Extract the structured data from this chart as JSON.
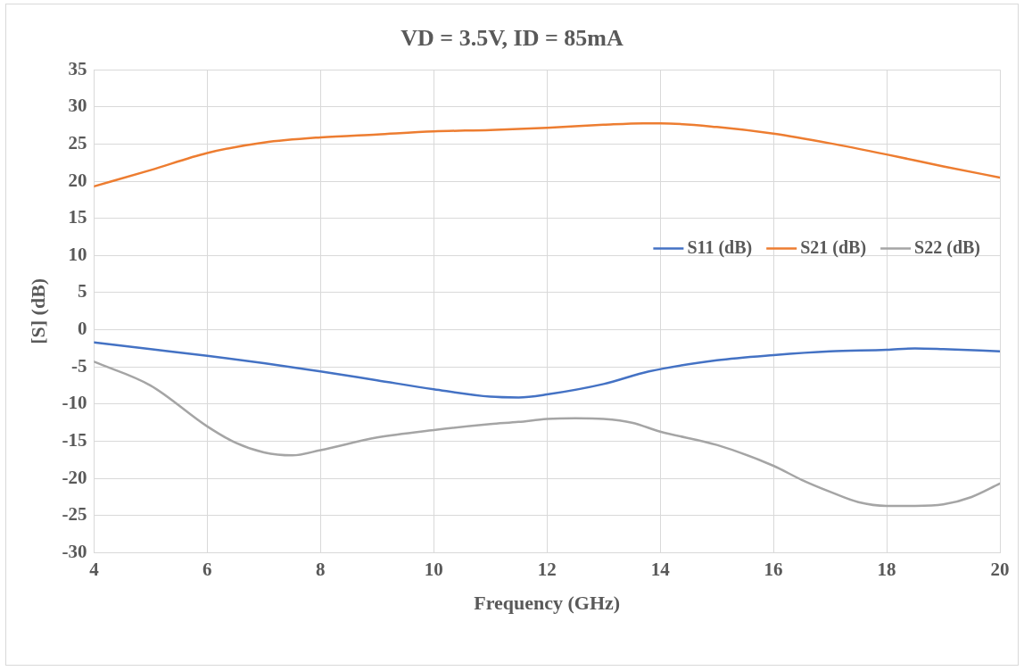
{
  "chart_data": {
    "type": "line",
    "title": "VD = 3.5V, ID = 85mA",
    "xlabel": "Frequency (GHz)",
    "ylabel": "[S] (dB)",
    "xlim": [
      4,
      20
    ],
    "xticks": [
      4,
      6,
      8,
      10,
      12,
      14,
      16,
      18,
      20
    ],
    "ylim": [
      -30,
      35
    ],
    "yticks": [
      -30,
      -25,
      -20,
      -15,
      -10,
      -5,
      0,
      5,
      10,
      15,
      20,
      25,
      30,
      35
    ],
    "grid": true,
    "legend": "right",
    "marker": "none",
    "line_style": "solid",
    "series": [
      {
        "name": "S11 (dB)",
        "color": "#4472c4",
        "x": [
          4,
          5,
          6,
          7,
          8,
          9,
          10,
          11,
          11.5,
          12,
          13,
          13.8,
          15,
          16,
          17,
          18,
          18.5,
          19,
          20
        ],
        "values": [
          -1.7,
          -2.6,
          -3.5,
          -4.5,
          -5.6,
          -6.8,
          -8,
          -9,
          -9.1,
          -8.7,
          -7.3,
          -5.6,
          -4.1,
          -3.4,
          -2.9,
          -2.7,
          -2.5,
          -2.6,
          -2.9
        ]
      },
      {
        "name": "S21 (dB)",
        "color": "#ed7d31",
        "x": [
          4,
          5,
          6,
          7,
          8,
          9,
          10,
          11,
          12,
          13,
          13.7,
          14,
          15,
          16,
          17,
          18,
          19,
          20
        ],
        "values": [
          19.3,
          21.5,
          23.8,
          25.2,
          25.9,
          26.3,
          26.7,
          26.9,
          27.2,
          27.6,
          27.8,
          27.8,
          27.3,
          26.4,
          25.1,
          23.6,
          22,
          20.5
        ]
      },
      {
        "name": "S22 (dB)",
        "color": "#a5a5a5",
        "x": [
          4,
          5,
          6,
          6.5,
          7,
          7.5,
          8,
          9,
          10,
          11,
          11.5,
          12,
          12.5,
          13,
          13.5,
          14,
          15,
          16,
          16.5,
          17,
          17.5,
          18,
          18.5,
          19,
          19.5,
          20
        ],
        "values": [
          -4.3,
          -7.5,
          -13,
          -15.2,
          -16.5,
          -16.9,
          -16.2,
          -14.5,
          -13.5,
          -12.7,
          -12.4,
          -12,
          -11.9,
          -12,
          -12.5,
          -13.7,
          -15.5,
          -18.3,
          -20.2,
          -21.8,
          -23.2,
          -23.7,
          -23.7,
          -23.5,
          -22.5,
          -20.7
        ]
      }
    ]
  }
}
